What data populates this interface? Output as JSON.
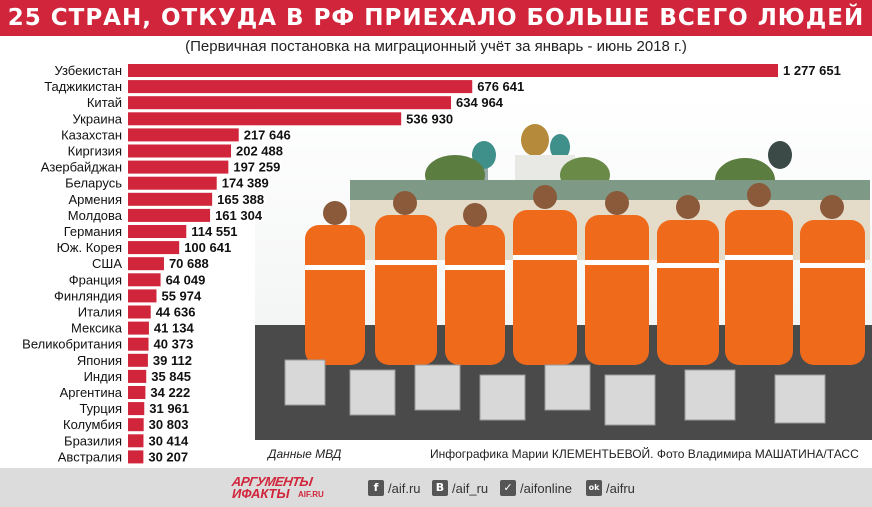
{
  "header": {
    "title": "25 СТРАН, ОТКУДА В РФ ПРИЕХАЛО БОЛЬШЕ ВСЕГО ЛЮДЕЙ",
    "subtitle": "(Первичная постановка на миграционный учёт за январь - июнь 2018 г.)"
  },
  "chart_data": {
    "type": "bar",
    "orientation": "horizontal",
    "categories": [
      "Узбекистан",
      "Таджикистан",
      "Китай",
      "Украина",
      "Казахстан",
      "Киргизия",
      "Азербайджан",
      "Беларусь",
      "Армения",
      "Молдова",
      "Германия",
      "Юж. Корея",
      "США",
      "Франция",
      "Финляндия",
      "Италия",
      "Мексика",
      "Великобритания",
      "Япония",
      "Индия",
      "Аргентина",
      "Турция",
      "Колумбия",
      "Бразилия",
      "Австралия"
    ],
    "values": [
      1277651,
      676641,
      634964,
      536930,
      217646,
      202488,
      197259,
      174389,
      165388,
      161304,
      114551,
      100641,
      70688,
      64049,
      55974,
      44636,
      41134,
      40373,
      39112,
      35845,
      34222,
      31961,
      30803,
      30414,
      30207
    ],
    "value_labels": [
      "1 277 651",
      "676 641",
      "634 964",
      "536 930",
      "217 646",
      "202 488",
      "197 259",
      "174 389",
      "165 388",
      "161 304",
      "114 551",
      "100 641",
      "70 688",
      "64 049",
      "55 974",
      "44 636",
      "41 134",
      "40 373",
      "39 112",
      "35 845",
      "34 222",
      "31 961",
      "30 803",
      "30 414",
      "30 207"
    ],
    "bar_color": "#d0253a",
    "grid": false,
    "legend": "none"
  },
  "source": "Данные МВД",
  "credit": "Инфографика Марии КЛЕМЕНТЬЕВОЙ. Фото Владимира МАШАТИНА/ТАСС",
  "footer": {
    "logo": {
      "line1": "АРГУМЕНТЫ",
      "line2": "ИФАКТЫ",
      "domain": "AIF.RU"
    },
    "social": [
      {
        "icon": "facebook-icon",
        "glyph": "f",
        "label": "/aif.ru"
      },
      {
        "icon": "vk-icon",
        "glyph": "В",
        "label": "/aif_ru"
      },
      {
        "icon": "twitter-icon",
        "glyph": "✓",
        "label": "/aifonline"
      },
      {
        "icon": "odnoklassniki-icon",
        "glyph": "ok",
        "label": "/aifru"
      }
    ]
  },
  "colors": {
    "accent": "#d0253a",
    "footer_bg": "#dcdcdc",
    "worker_orange": "#f06a1c"
  }
}
